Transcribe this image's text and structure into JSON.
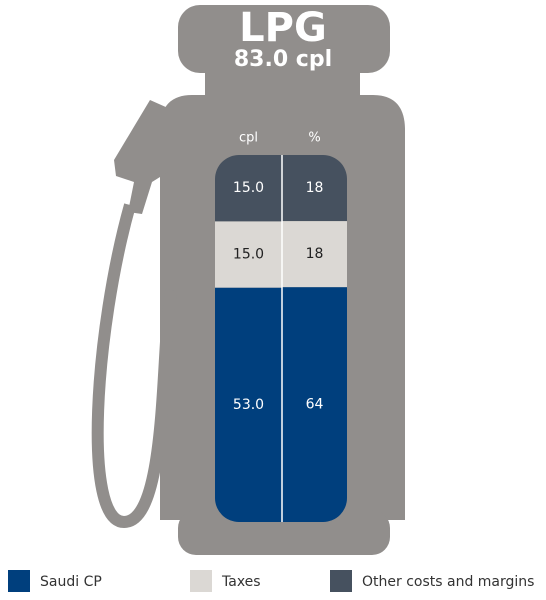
{
  "chart_data": {
    "type": "stacked-bar",
    "title": "LPG",
    "subtitle": "83.0 cpl",
    "columns": [
      "cpl",
      "%"
    ],
    "series": [
      {
        "name": "Saudi CP",
        "color": "#003f7d",
        "values": [
          53,
          64
        ],
        "value_labels": [
          "53.0",
          "64"
        ]
      },
      {
        "name": "Taxes",
        "color": "#dbd8d4",
        "values": [
          15,
          18
        ],
        "value_labels": [
          "15.0",
          "18"
        ]
      },
      {
        "name": "Other costs and margins",
        "color": "#46515f",
        "values": [
          15,
          18
        ],
        "value_labels": [
          "15.0",
          "18"
        ]
      }
    ]
  }
}
